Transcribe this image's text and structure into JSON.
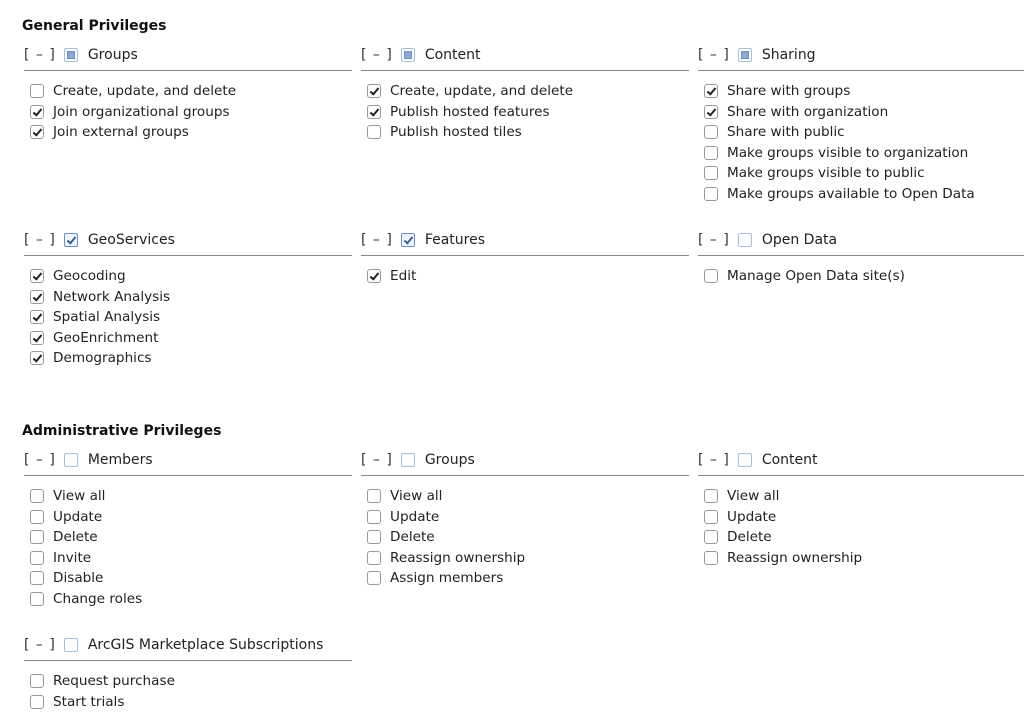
{
  "toggle_label": "[ – ]",
  "sections": [
    {
      "title": "General Privileges",
      "groups": [
        {
          "label": "Groups",
          "state": "partial",
          "items": [
            {
              "label": "Create, update, and delete",
              "checked": false
            },
            {
              "label": "Join organizational groups",
              "checked": true
            },
            {
              "label": "Join external groups",
              "checked": true
            }
          ]
        },
        {
          "label": "Content",
          "state": "partial",
          "items": [
            {
              "label": "Create, update, and delete",
              "checked": true
            },
            {
              "label": "Publish hosted features",
              "checked": true
            },
            {
              "label": "Publish hosted tiles",
              "checked": false
            }
          ]
        },
        {
          "label": "Sharing",
          "state": "partial",
          "items": [
            {
              "label": "Share with groups",
              "checked": true
            },
            {
              "label": "Share with organization",
              "checked": true
            },
            {
              "label": "Share with public",
              "checked": false
            },
            {
              "label": "Make groups visible to organization",
              "checked": false
            },
            {
              "label": "Make groups visible to public",
              "checked": false
            },
            {
              "label": "Make groups available to Open Data",
              "checked": false
            }
          ]
        },
        {
          "label": "GeoServices",
          "state": "checked",
          "items": [
            {
              "label": "Geocoding",
              "checked": true
            },
            {
              "label": "Network Analysis",
              "checked": true
            },
            {
              "label": "Spatial Analysis",
              "checked": true
            },
            {
              "label": "GeoEnrichment",
              "checked": true
            },
            {
              "label": "Demographics",
              "checked": true
            }
          ]
        },
        {
          "label": "Features",
          "state": "checked",
          "items": [
            {
              "label": "Edit",
              "checked": true
            }
          ]
        },
        {
          "label": "Open Data",
          "state": "unchecked",
          "items": [
            {
              "label": "Manage Open Data site(s)",
              "checked": false
            }
          ]
        }
      ]
    },
    {
      "title": "Administrative Privileges",
      "groups": [
        {
          "label": "Members",
          "state": "unchecked",
          "items": [
            {
              "label": "View all",
              "checked": false
            },
            {
              "label": "Update",
              "checked": false
            },
            {
              "label": "Delete",
              "checked": false
            },
            {
              "label": "Invite",
              "checked": false
            },
            {
              "label": "Disable",
              "checked": false
            },
            {
              "label": "Change roles",
              "checked": false
            }
          ]
        },
        {
          "label": "Groups",
          "state": "unchecked",
          "items": [
            {
              "label": "View all",
              "checked": false
            },
            {
              "label": "Update",
              "checked": false
            },
            {
              "label": "Delete",
              "checked": false
            },
            {
              "label": "Reassign ownership",
              "checked": false
            },
            {
              "label": "Assign members",
              "checked": false
            }
          ]
        },
        {
          "label": "Content",
          "state": "unchecked",
          "items": [
            {
              "label": "View all",
              "checked": false
            },
            {
              "label": "Update",
              "checked": false
            },
            {
              "label": "Delete",
              "checked": false
            },
            {
              "label": "Reassign ownership",
              "checked": false
            }
          ]
        },
        {
          "label": "ArcGIS Marketplace Subscriptions",
          "state": "unchecked",
          "items": [
            {
              "label": "Request purchase",
              "checked": false
            },
            {
              "label": "Start trials",
              "checked": false
            }
          ]
        }
      ]
    }
  ]
}
